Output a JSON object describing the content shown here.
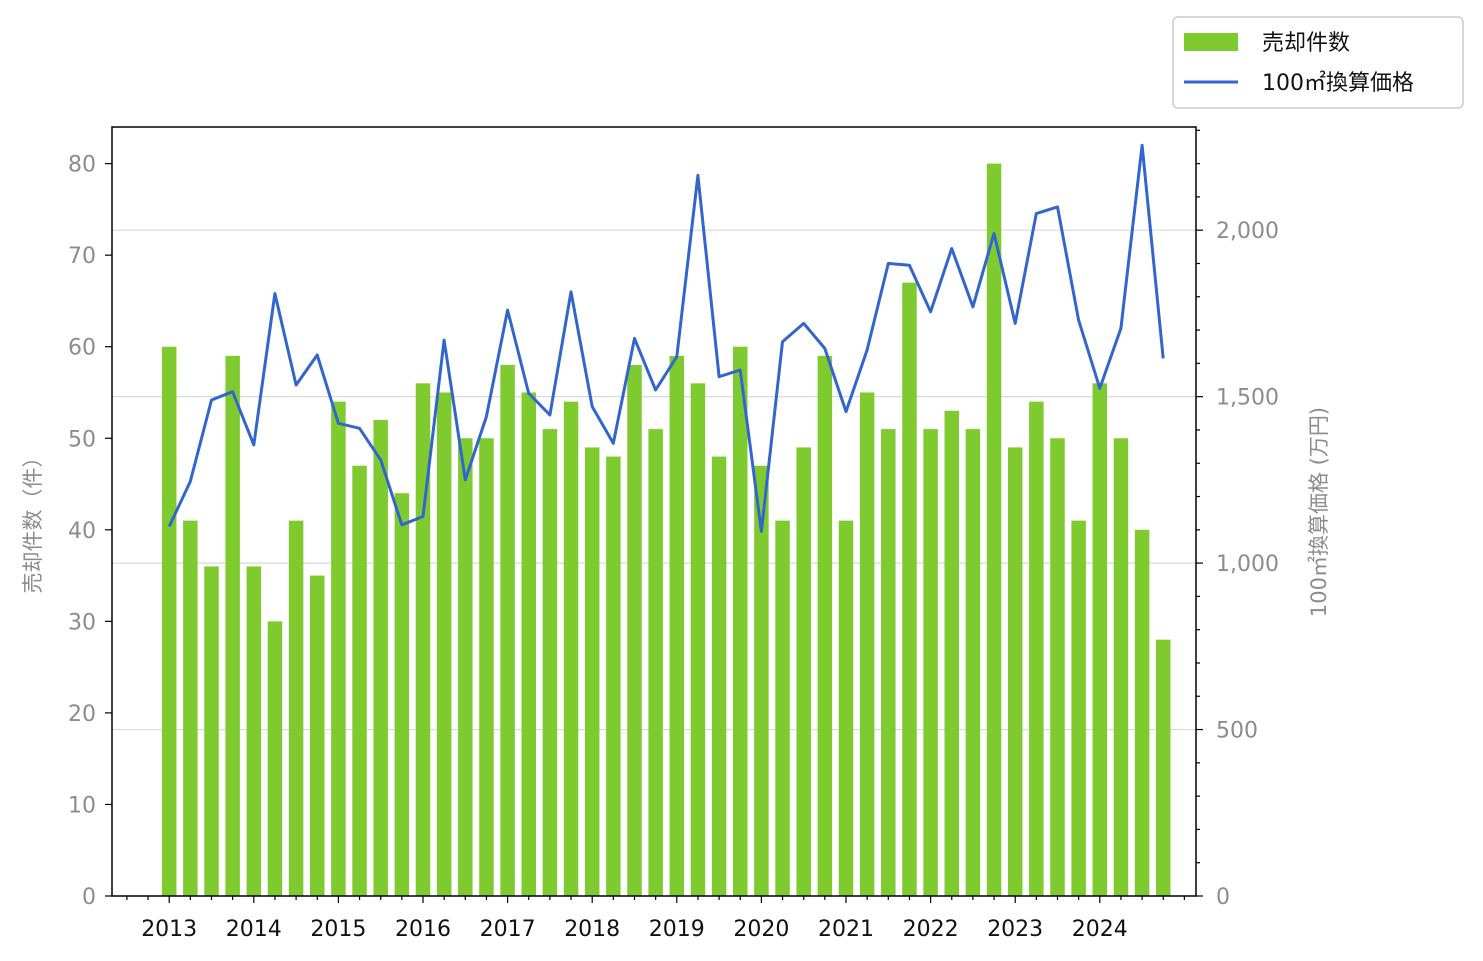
{
  "chart_data": {
    "type": "bar+line",
    "x_ticks": [
      "2013",
      "2014",
      "2015",
      "2016",
      "2017",
      "2018",
      "2019",
      "2020",
      "2021",
      "2022",
      "2023",
      "2024"
    ],
    "x_start": 2013.0,
    "x_step": 0.25,
    "left_axis": {
      "label": "売却件数（件）",
      "ylim": [
        0,
        84
      ],
      "ticks": [
        "0",
        "10",
        "20",
        "30",
        "40",
        "50",
        "60",
        "70",
        "80"
      ],
      "tick_values": [
        0,
        10,
        20,
        30,
        40,
        50,
        60,
        70,
        80
      ]
    },
    "right_axis": {
      "label": "100㎡換算価格 (万円)",
      "ylim": [
        0,
        2310
      ],
      "ticks": [
        "0",
        "500",
        "1,000",
        "1,500",
        "2,000"
      ],
      "tick_values": [
        0,
        500,
        1000,
        1500,
        2000
      ]
    },
    "grid": "horizontal, right axis major ticks",
    "legend_position": "top-right, outside plot",
    "series": [
      {
        "name": "売却件数",
        "kind": "bar",
        "axis": "left",
        "color": "#7fcb2f",
        "values": [
          60,
          41,
          36,
          59,
          36,
          30,
          41,
          35,
          54,
          47,
          52,
          44,
          56,
          55,
          50,
          50,
          58,
          55,
          51,
          54,
          49,
          48,
          58,
          51,
          59,
          56,
          48,
          60,
          47,
          41,
          49,
          59,
          41,
          55,
          51,
          67,
          51,
          53,
          51,
          80,
          49,
          54,
          50,
          41,
          56,
          50,
          40,
          28
        ]
      },
      {
        "name": "100㎡換算価格",
        "kind": "line",
        "axis": "right",
        "color": "#3366cc",
        "values": [
          1110,
          1245,
          1490,
          1515,
          1355,
          1810,
          1535,
          1625,
          1420,
          1405,
          1310,
          1115,
          1140,
          1670,
          1250,
          1440,
          1760,
          1510,
          1445,
          1815,
          1470,
          1360,
          1675,
          1520,
          1620,
          2165,
          1560,
          1580,
          1095,
          1665,
          1720,
          1645,
          1455,
          1640,
          1900,
          1895,
          1755,
          1945,
          1770,
          1990,
          1720,
          2050,
          2070,
          1730,
          1525,
          1705,
          2255,
          1615
        ]
      }
    ]
  }
}
